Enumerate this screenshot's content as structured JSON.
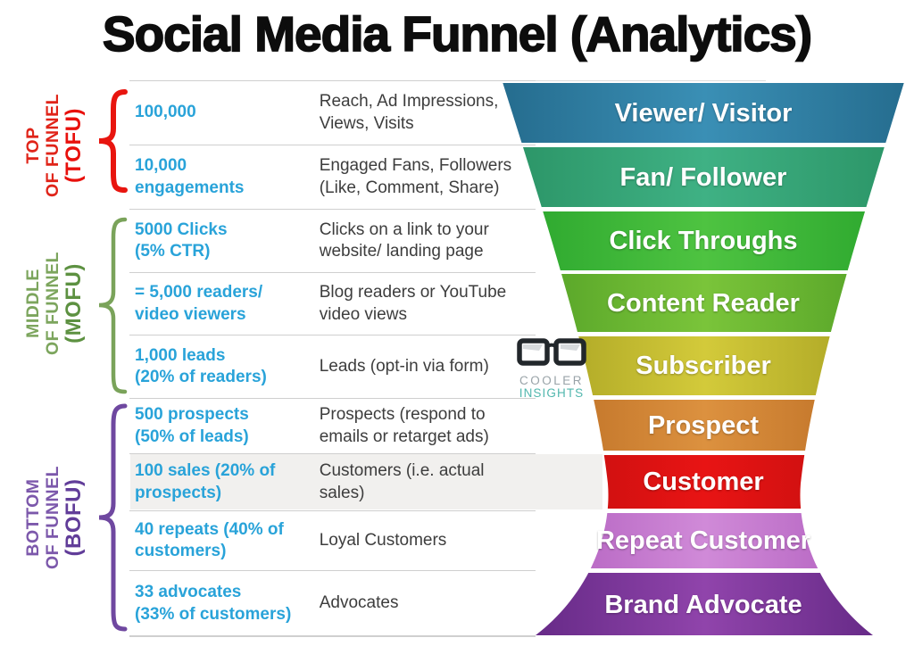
{
  "title": "Social Media Funnel (Analytics)",
  "groups": [
    {
      "name": "TOP OF FUNNEL (TOFU)",
      "lines": "TOP\nOF FUNNEL",
      "abbr": "(TOFU)",
      "label_color": "#e02419",
      "accent_color": "#e8100c",
      "brace_color": "#e8150f"
    },
    {
      "name": "MIDDLE OF FUNNEL (MOFU)",
      "lines": "MIDDLE\nOF FUNNEL",
      "abbr": "(MOFU)",
      "label_color": "#7ca55d",
      "accent_color": "#5d9141",
      "brace_color": "#7aa35a"
    },
    {
      "name": "BOTTOM OF FUNNEL (BOFU)",
      "lines": "BOTTOM\nOF FUNNEL",
      "abbr": "(BOFU)",
      "label_color": "#7c58ab",
      "accent_color": "#613d99",
      "brace_color": "#6f48a0"
    }
  ],
  "rows": [
    {
      "metric": "100,000",
      "description": "Reach, Ad Impressions,\nViews, Visits",
      "stage": "Viewer/ Visitor",
      "color_center": "#3a8fb5",
      "color_edge": "#256c8e",
      "highlighted": false
    },
    {
      "metric": "10,000\nengagements",
      "description": "Engaged Fans, Followers\n(Like, Comment, Share)",
      "stage": "Fan/ Follower",
      "color_center": "#3fb184",
      "color_edge": "#2a9365",
      "highlighted": false
    },
    {
      "metric": "5000 Clicks\n(5% CTR)",
      "description": "Clicks on a link to your\nwebsite/ landing page",
      "stage": "Click Throughs",
      "color_center": "#4ec341",
      "color_edge": "#28a42c",
      "highlighted": false
    },
    {
      "metric": "= 5,000 readers/\nvideo viewers",
      "description": "Blog readers or YouTube\nvideo views",
      "stage": "Content Reader",
      "color_center": "#7ac43a",
      "color_edge": "#4f9d24",
      "highlighted": false
    },
    {
      "metric": "1,000 leads\n(20% of readers)",
      "description": "Leads (opt-in via form)",
      "stage": "Subscriber",
      "color_center": "#d3ca3a",
      "color_edge": "#a09a1e",
      "highlighted": false
    },
    {
      "metric": "500 prospects\n(50% of leads)",
      "description": "Prospects (respond to\nemails or retarget ads)",
      "stage": "Prospect",
      "color_center": "#dc913f",
      "color_edge": "#b5671f",
      "highlighted": false
    },
    {
      "metric": "100 sales (20% of\nprospects)",
      "description": "Customers (i.e. actual\nsales)",
      "stage": "Customer",
      "color_center": "#e81414",
      "color_edge": "#bb0d0d",
      "highlighted": true
    },
    {
      "metric": "40 repeats (40% of\ncustomers)",
      "description": "Loyal Customers",
      "stage": "Repeat Customer",
      "color_center": "#d08ad8",
      "color_edge": "#aa55b8",
      "highlighted": false
    },
    {
      "metric": "33 advocates\n(33% of customers)",
      "description": "Advocates",
      "stage": "Brand Advocate",
      "color_center": "#9044ab",
      "color_edge": "#5e2580",
      "highlighted": false
    }
  ],
  "logo": {
    "line1": "COOLER",
    "line2": "INSIGHTS",
    "muted_color": "#99a3a8",
    "accent_color": "#52b7ae"
  },
  "colors": {
    "metric_text": "#29a3d9",
    "description_text": "#3d3d3d",
    "separator": "#cfcfcf",
    "highlight_row_bg": "#f1f0ee",
    "stage_label": "#ffffff",
    "title_text": "#0d0d0d"
  }
}
